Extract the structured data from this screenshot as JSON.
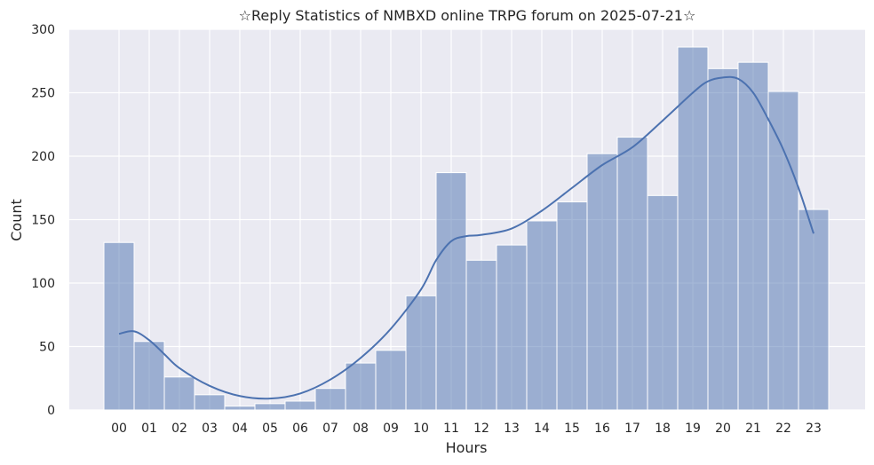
{
  "chart_data": {
    "type": "bar",
    "title": "☆Reply Statistics of NMBXD online TRPG forum on 2025-07-21☆",
    "xlabel": "Hours",
    "ylabel": "Count",
    "categories": [
      "00",
      "01",
      "02",
      "03",
      "04",
      "05",
      "06",
      "07",
      "08",
      "09",
      "10",
      "11",
      "12",
      "13",
      "14",
      "15",
      "16",
      "17",
      "18",
      "19",
      "20",
      "21",
      "22",
      "23"
    ],
    "values": [
      132,
      54,
      26,
      12,
      3,
      5,
      7,
      17,
      37,
      47,
      90,
      187,
      118,
      130,
      149,
      164,
      202,
      215,
      169,
      286,
      269,
      274,
      251,
      158
    ],
    "ylim": [
      0,
      300
    ],
    "yticks": [
      0,
      50,
      100,
      150,
      200,
      250,
      300
    ],
    "kde": {
      "x": [
        0.0,
        0.5,
        1.0,
        1.5,
        2.0,
        3.0,
        4.0,
        5.0,
        6.0,
        7.0,
        8.0,
        9.0,
        10.0,
        10.5,
        11.0,
        11.5,
        12.0,
        13.0,
        14.0,
        15.0,
        16.0,
        17.0,
        18.0,
        19.0,
        19.5,
        20.0,
        20.5,
        21.0,
        21.5,
        22.0,
        22.5,
        23.0
      ],
      "y": [
        60,
        62,
        55,
        44,
        33,
        19,
        11,
        9,
        13,
        24,
        41,
        64,
        95,
        118,
        133,
        137,
        138,
        143,
        157,
        175,
        193,
        207,
        228,
        250,
        259,
        262,
        261,
        250,
        229,
        205,
        175,
        139
      ]
    },
    "grid": true,
    "colors": {
      "background": "#eaeaf2",
      "grid": "#ffffff",
      "bar_fill": "#4c72b0",
      "bar_opacity": 0.5,
      "line": "#4c72b0"
    }
  }
}
